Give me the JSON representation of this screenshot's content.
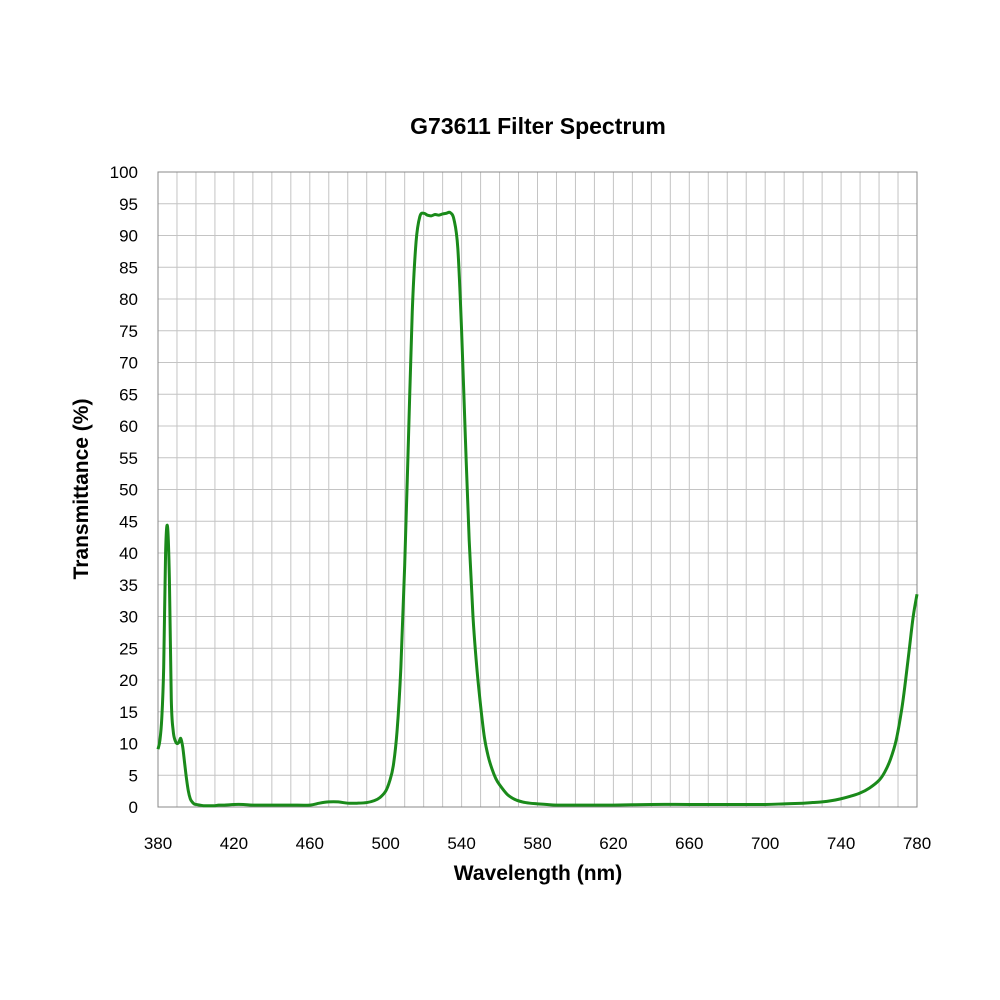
{
  "chart_data": {
    "type": "line",
    "title": "G73611 Filter Spectrum",
    "xlabel": "Wavelength (nm)",
    "ylabel": "Transmittance (%)",
    "xlim": [
      380,
      780
    ],
    "ylim": [
      0,
      100
    ],
    "x_ticks": [
      380,
      420,
      460,
      500,
      540,
      580,
      620,
      660,
      700,
      740,
      780
    ],
    "y_ticks": [
      0,
      5,
      10,
      15,
      20,
      25,
      30,
      35,
      40,
      45,
      50,
      55,
      60,
      65,
      70,
      75,
      80,
      85,
      90,
      95,
      100
    ],
    "x_minor_step": 10,
    "grid": true,
    "legend": "none",
    "series_color": "#1a8a1a",
    "series": [
      {
        "x": [
          380,
          381,
          382,
          383,
          384,
          385,
          386,
          387,
          388,
          389,
          390,
          391,
          392,
          393,
          394,
          395,
          396,
          397,
          398,
          399,
          400,
          402,
          404,
          406,
          408,
          410,
          412,
          415,
          420,
          425,
          430,
          440,
          450,
          460,
          465,
          470,
          475,
          480,
          485,
          490,
          494,
          497,
          500,
          502,
          504,
          506,
          508,
          510,
          512,
          514,
          516,
          518,
          520,
          522,
          524,
          526,
          528,
          530,
          532,
          534,
          536,
          538,
          540,
          542,
          544,
          546,
          548,
          550,
          552,
          554,
          556,
          558,
          560,
          564,
          568,
          572,
          576,
          580,
          585,
          590,
          600,
          620,
          640,
          660,
          680,
          700,
          710,
          720,
          725,
          730,
          735,
          740,
          745,
          750,
          755,
          760,
          763,
          766,
          769,
          772,
          774,
          776,
          778,
          780
        ],
        "y": [
          9.1,
          10.5,
          14.0,
          22.0,
          40.0,
          44.2,
          36.0,
          17.0,
          12.0,
          10.5,
          10.0,
          10.2,
          10.8,
          9.5,
          7.0,
          4.5,
          2.5,
          1.3,
          0.8,
          0.5,
          0.4,
          0.3,
          0.2,
          0.2,
          0.2,
          0.2,
          0.3,
          0.3,
          0.4,
          0.4,
          0.3,
          0.3,
          0.3,
          0.3,
          0.6,
          0.8,
          0.8,
          0.6,
          0.6,
          0.7,
          1.0,
          1.5,
          2.5,
          4.0,
          6.5,
          12.0,
          22.0,
          38.0,
          58.0,
          78.0,
          89.0,
          93.0,
          93.5,
          93.2,
          93.1,
          93.3,
          93.2,
          93.4,
          93.5,
          93.6,
          92.5,
          88.0,
          75.0,
          58.0,
          42.0,
          30.0,
          22.0,
          16.0,
          11.0,
          8.0,
          6.0,
          4.5,
          3.5,
          2.0,
          1.2,
          0.8,
          0.6,
          0.5,
          0.4,
          0.3,
          0.3,
          0.3,
          0.4,
          0.4,
          0.4,
          0.4,
          0.5,
          0.6,
          0.7,
          0.8,
          1.0,
          1.3,
          1.7,
          2.2,
          3.0,
          4.2,
          5.5,
          7.5,
          10.5,
          15.5,
          20.0,
          25.0,
          30.0,
          33.5
        ]
      }
    ]
  }
}
